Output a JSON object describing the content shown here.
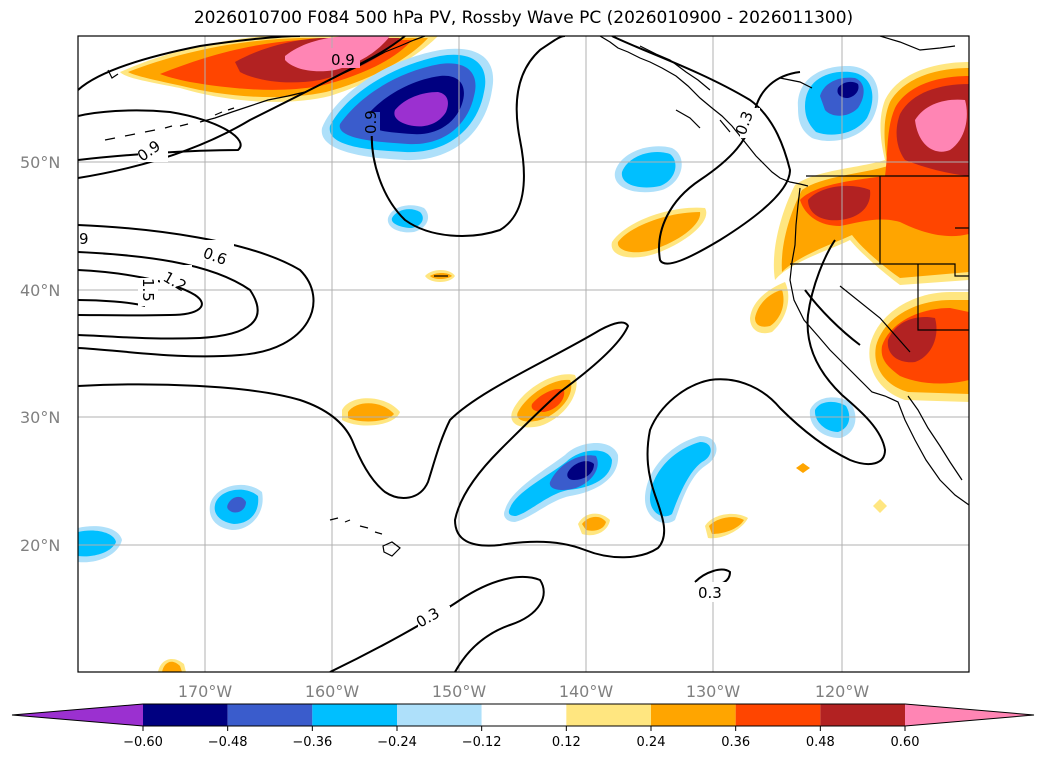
{
  "title": "2026010700 F084 500 hPa PV, Rossby Wave PC (2026010900 - 2026011300)",
  "lat_labels": [
    "50°N",
    "40°N",
    "30°N",
    "20°N"
  ],
  "lon_labels": [
    "170°W",
    "160°W",
    "150°W",
    "140°W",
    "130°W",
    "120°W"
  ],
  "colorbar": {
    "ticks": [
      "−0.60",
      "−0.48",
      "−0.36",
      "−0.24",
      "−0.12",
      "0.12",
      "0.24",
      "0.36",
      "0.48",
      "0.60"
    ],
    "colors": [
      "#9b30d0",
      "#000080",
      "#3a5ccc",
      "#00bfff",
      "#aee0fa",
      "#ffffff",
      "#ffe680",
      "#ffa500",
      "#ff4500",
      "#b22222",
      "#ff85b4",
      "#ff85b4"
    ],
    "under_color": "#9b30d0",
    "over_color": "#ff85b4"
  },
  "contour_labels": [
    "0.9",
    "0.9",
    "0.6",
    "1.2",
    "1.5",
    "9",
    "0.3",
    "0.3",
    "0.3",
    "0.9"
  ],
  "colors": {
    "contour": "#000000",
    "grid": "#b0b0b0",
    "coast": "#000000"
  }
}
